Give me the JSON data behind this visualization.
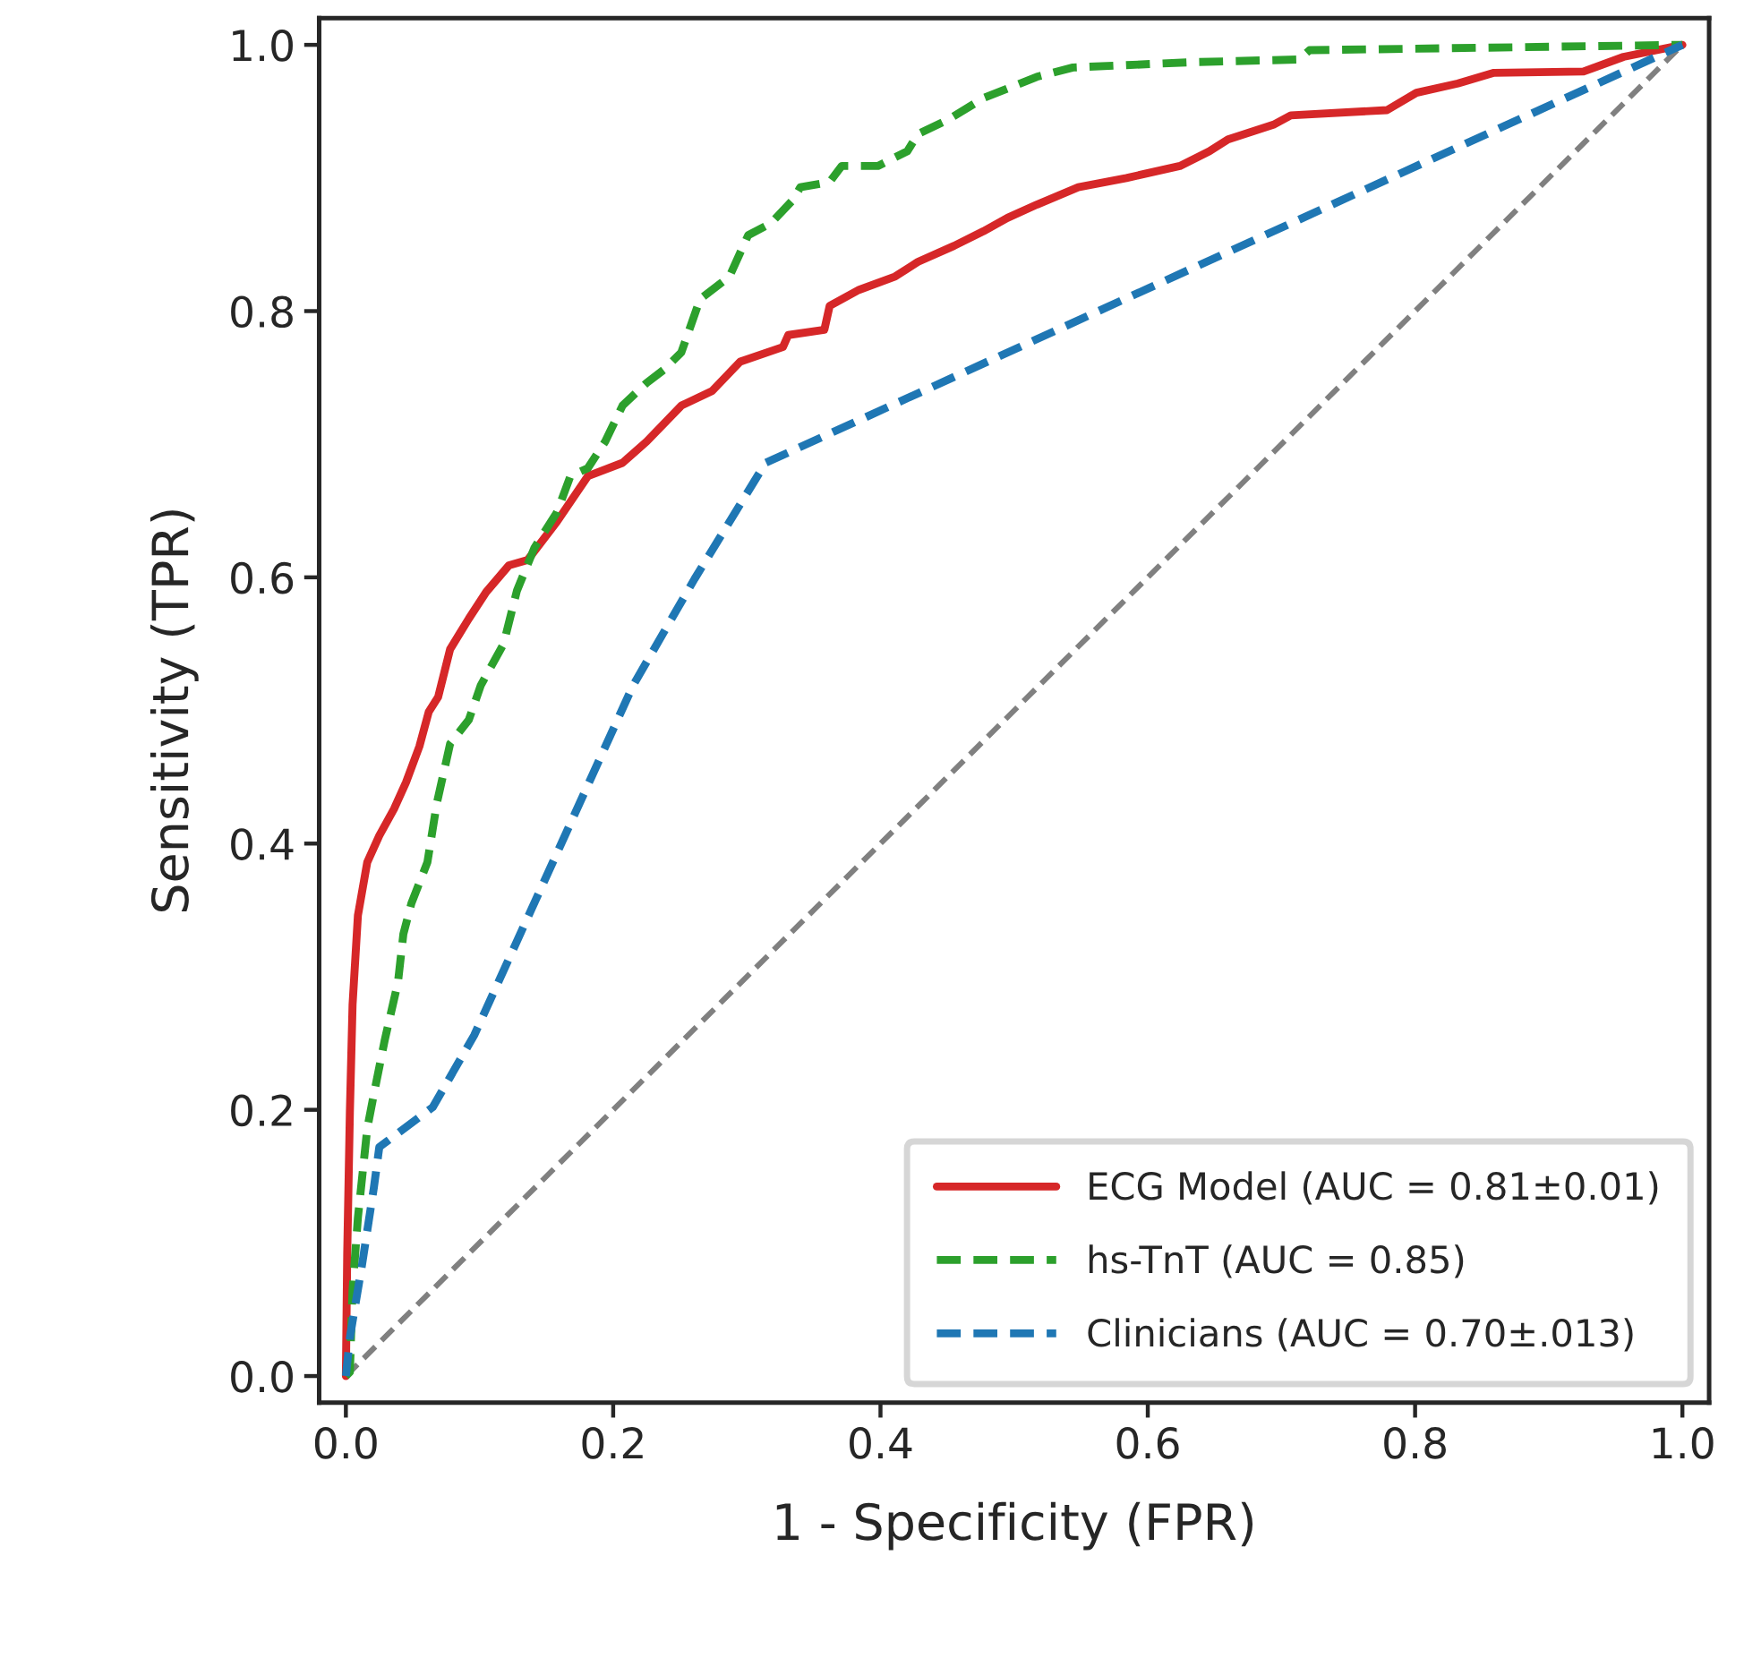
{
  "chart_data": {
    "type": "line",
    "xlabel": "1 - Specificity (FPR)",
    "ylabel": "Sensitivity (TPR)",
    "xlim": [
      -0.02,
      1.02
    ],
    "ylim": [
      -0.02,
      1.02
    ],
    "xticks": [
      {
        "value": 0,
        "label": "0.0"
      },
      0.2,
      0.4,
      0.6,
      0.8,
      {
        "value": 1,
        "label": "1.0"
      }
    ],
    "yticks": [
      {
        "value": 0,
        "label": "0.0"
      },
      0.2,
      0.4,
      0.6,
      0.8,
      {
        "value": 1,
        "label": "1.0"
      }
    ],
    "grid": false,
    "legend": "bottom right",
    "marker": "none",
    "series": [
      {
        "name": "ECG Model (AUC = 0.81±0.01)",
        "color": "#d62728",
        "line_style": "solid",
        "x": [
          0,
          0.001,
          0.003,
          0.005,
          0.009,
          0.016,
          0.025,
          0.036,
          0.045,
          0.055,
          0.062,
          0.069,
          0.078,
          0.092,
          0.105,
          0.122,
          0.136,
          0.158,
          0.181,
          0.207,
          0.225,
          0.251,
          0.274,
          0.295,
          0.327,
          0.331,
          0.358,
          0.362,
          0.384,
          0.411,
          0.428,
          0.455,
          0.477,
          0.495,
          0.517,
          0.548,
          0.584,
          0.624,
          0.646,
          0.66,
          0.694,
          0.707,
          0.779,
          0.801,
          0.832,
          0.859,
          0.926,
          0.956,
          1.0
        ],
        "values": [
          0,
          0.092,
          0.199,
          0.279,
          0.346,
          0.386,
          0.406,
          0.426,
          0.446,
          0.473,
          0.499,
          0.51,
          0.546,
          0.569,
          0.589,
          0.609,
          0.613,
          0.642,
          0.676,
          0.686,
          0.702,
          0.729,
          0.74,
          0.762,
          0.773,
          0.782,
          0.786,
          0.804,
          0.816,
          0.826,
          0.837,
          0.849,
          0.86,
          0.87,
          0.88,
          0.893,
          0.9,
          0.909,
          0.92,
          0.929,
          0.94,
          0.947,
          0.951,
          0.964,
          0.971,
          0.979,
          0.98,
          0.991,
          1.0
        ]
      },
      {
        "name": "hs-TnT (AUC = 0.85)",
        "color": "#2ca02c",
        "line_style": "dashed",
        "x": [
          0,
          0.003,
          0.005,
          0.009,
          0.016,
          0.021,
          0.029,
          0.039,
          0.043,
          0.049,
          0.061,
          0.068,
          0.078,
          0.092,
          0.101,
          0.118,
          0.128,
          0.141,
          0.158,
          0.168,
          0.181,
          0.194,
          0.207,
          0.225,
          0.238,
          0.251,
          0.265,
          0.287,
          0.301,
          0.318,
          0.335,
          0.34,
          0.362,
          0.371,
          0.398,
          0.42,
          0.428,
          0.451,
          0.477,
          0.517,
          0.544,
          0.633,
          0.713,
          0.721,
          1.0
        ],
        "values": [
          0,
          0.003,
          0.065,
          0.119,
          0.186,
          0.212,
          0.252,
          0.296,
          0.332,
          0.355,
          0.386,
          0.43,
          0.475,
          0.493,
          0.519,
          0.55,
          0.59,
          0.622,
          0.649,
          0.676,
          0.682,
          0.702,
          0.729,
          0.746,
          0.756,
          0.769,
          0.809,
          0.826,
          0.857,
          0.866,
          0.884,
          0.893,
          0.897,
          0.909,
          0.909,
          0.92,
          0.933,
          0.944,
          0.96,
          0.976,
          0.983,
          0.987,
          0.989,
          0.996,
          1.0
        ]
      },
      {
        "name": "Clinicians (AUC = 0.70±.013)",
        "color": "#1f77b4",
        "line_style": "dashed",
        "x": [
          0,
          0.003,
          0.012,
          0.021,
          0.025,
          0.065,
          0.096,
          0.215,
          0.261,
          0.314,
          1.0
        ],
        "values": [
          0,
          0.029,
          0.083,
          0.142,
          0.172,
          0.202,
          0.256,
          0.519,
          0.599,
          0.686,
          1.0
        ]
      },
      {
        "color": "#808080",
        "line_style": "dashed",
        "x": [
          0,
          1
        ],
        "values": [
          0,
          1
        ]
      }
    ]
  }
}
